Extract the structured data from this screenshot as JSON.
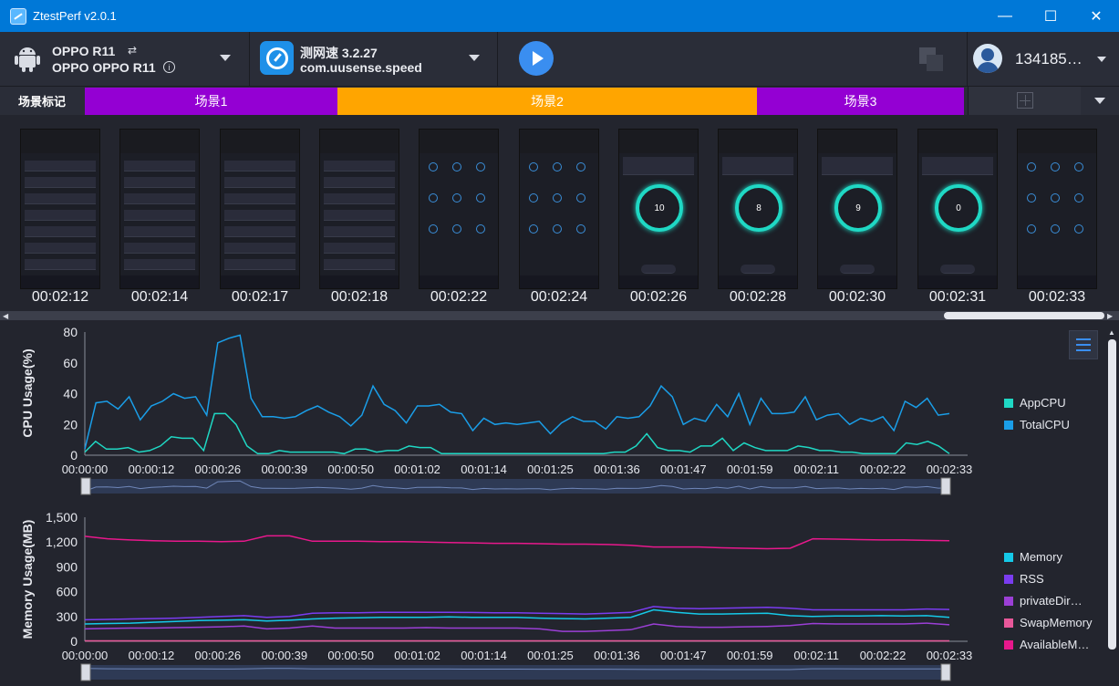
{
  "window": {
    "title": "ZtestPerf v2.0.1"
  },
  "device": {
    "name": "OPPO R11",
    "model": "OPPO OPPO R11"
  },
  "app": {
    "name": "测网速 3.2.27",
    "package": "com.uusense.speed"
  },
  "user": {
    "name": "134185…"
  },
  "scenes": {
    "label": "场景标记",
    "items": [
      "场景1",
      "场景2",
      "场景3"
    ],
    "colors": [
      "#9400d3",
      "#ffa500",
      "#9400d3"
    ]
  },
  "screenshots": {
    "times": [
      "00:02:12",
      "00:02:14",
      "00:02:17",
      "00:02:18",
      "00:02:22",
      "00:02:24",
      "00:02:26",
      "00:02:28",
      "00:02:30",
      "00:02:31",
      "00:02:33"
    ],
    "gauge_values": [
      "",
      "",
      "",
      "",
      "",
      "",
      "10",
      "8",
      "9",
      "0",
      ""
    ]
  },
  "chart_data": [
    {
      "type": "line",
      "ylabel": "CPU Usage(%)",
      "ylim": [
        0,
        80
      ],
      "yticks": [
        "0",
        "20",
        "40",
        "60",
        "80"
      ],
      "xticks": [
        "00:00:00",
        "00:00:12",
        "00:00:26",
        "00:00:39",
        "00:00:50",
        "00:01:02",
        "00:01:14",
        "00:01:25",
        "00:01:36",
        "00:01:47",
        "00:01:59",
        "00:02:11",
        "00:02:22",
        "00:02:33"
      ],
      "series": [
        {
          "name": "AppCPU",
          "color": "#1fd8c4",
          "values": [
            2,
            9,
            4,
            4,
            5,
            2,
            3,
            6,
            12,
            11,
            11,
            3,
            27,
            27,
            20,
            6,
            1,
            1,
            3,
            2,
            2,
            2,
            2,
            2,
            1,
            4,
            4,
            2,
            3,
            3,
            6,
            5,
            5,
            1,
            1,
            1,
            1,
            1,
            1,
            1,
            1,
            1,
            1,
            1,
            1,
            1,
            1,
            1,
            1,
            2,
            2,
            6,
            14,
            5,
            3,
            3,
            2,
            6,
            6,
            11,
            3,
            8,
            5,
            3,
            3,
            3,
            6,
            5,
            3,
            3,
            2,
            2,
            1,
            1,
            1,
            1,
            8,
            7,
            9,
            6,
            1
          ]
        },
        {
          "name": "TotalCPU",
          "color": "#1a9ee8",
          "values": [
            4,
            34,
            35,
            30,
            38,
            23,
            32,
            35,
            40,
            37,
            38,
            26,
            73,
            76,
            78,
            37,
            25,
            25,
            24,
            25,
            29,
            32,
            28,
            25,
            19,
            26,
            45,
            33,
            29,
            21,
            32,
            32,
            33,
            28,
            27,
            16,
            24,
            20,
            21,
            20,
            21,
            22,
            14,
            21,
            25,
            22,
            22,
            17,
            25,
            24,
            25,
            32,
            45,
            38,
            20,
            24,
            22,
            33,
            25,
            40,
            20,
            37,
            27,
            27,
            28,
            38,
            23,
            26,
            27,
            20,
            24,
            22,
            25,
            16,
            35,
            31,
            37,
            26,
            27
          ]
        }
      ]
    },
    {
      "type": "line",
      "ylabel": "Memory Usage(MB)",
      "ylim": [
        0,
        1500
      ],
      "yticks": [
        "0",
        "300",
        "600",
        "900",
        "1,200",
        "1,500"
      ],
      "xticks": [
        "00:00:00",
        "00:00:12",
        "00:00:26",
        "00:00:39",
        "00:00:50",
        "00:01:02",
        "00:01:14",
        "00:01:25",
        "00:01:36",
        "00:01:47",
        "00:01:59",
        "00:02:11",
        "00:02:22",
        "00:02:33"
      ],
      "series": [
        {
          "name": "Memory",
          "color": "#15c9e8",
          "values": [
            210,
            215,
            220,
            230,
            240,
            250,
            255,
            260,
            245,
            255,
            270,
            280,
            285,
            290,
            290,
            290,
            295,
            290,
            290,
            290,
            280,
            275,
            270,
            280,
            290,
            380,
            350,
            330,
            330,
            335,
            340,
            310,
            300,
            305,
            305,
            310,
            305,
            310,
            290
          ]
        },
        {
          "name": "RSS",
          "color": "#7a3cf0",
          "values": [
            260,
            265,
            270,
            275,
            280,
            290,
            300,
            310,
            290,
            300,
            340,
            345,
            345,
            350,
            350,
            350,
            350,
            348,
            345,
            345,
            340,
            335,
            330,
            340,
            350,
            420,
            400,
            395,
            400,
            405,
            410,
            400,
            380,
            380,
            380,
            380,
            380,
            390,
            385
          ]
        },
        {
          "name": "privateDir…",
          "color": "#9b3fd6",
          "values": [
            150,
            155,
            160,
            160,
            165,
            170,
            175,
            185,
            150,
            160,
            185,
            160,
            160,
            160,
            160,
            165,
            160,
            160,
            160,
            160,
            150,
            120,
            120,
            130,
            140,
            210,
            180,
            170,
            170,
            175,
            180,
            190,
            215,
            210,
            210,
            210,
            210,
            220,
            200
          ]
        },
        {
          "name": "SwapMemory",
          "color": "#e8589a",
          "values": [
            5,
            5,
            5,
            5,
            5,
            5,
            5,
            5,
            5,
            5,
            5,
            5,
            5,
            5,
            5,
            5,
            5,
            5,
            5,
            5,
            5,
            5,
            5,
            5,
            5,
            5,
            5,
            5,
            5,
            5,
            5,
            5,
            5,
            5,
            5,
            5,
            5,
            5,
            5
          ]
        },
        {
          "name": "AvailableM…",
          "color": "#e8188c",
          "values": [
            1270,
            1240,
            1225,
            1215,
            1210,
            1210,
            1205,
            1210,
            1275,
            1275,
            1210,
            1210,
            1210,
            1205,
            1205,
            1200,
            1195,
            1190,
            1185,
            1185,
            1180,
            1175,
            1175,
            1170,
            1160,
            1140,
            1140,
            1140,
            1130,
            1125,
            1120,
            1125,
            1240,
            1235,
            1230,
            1225,
            1225,
            1220,
            1215
          ]
        }
      ]
    }
  ]
}
